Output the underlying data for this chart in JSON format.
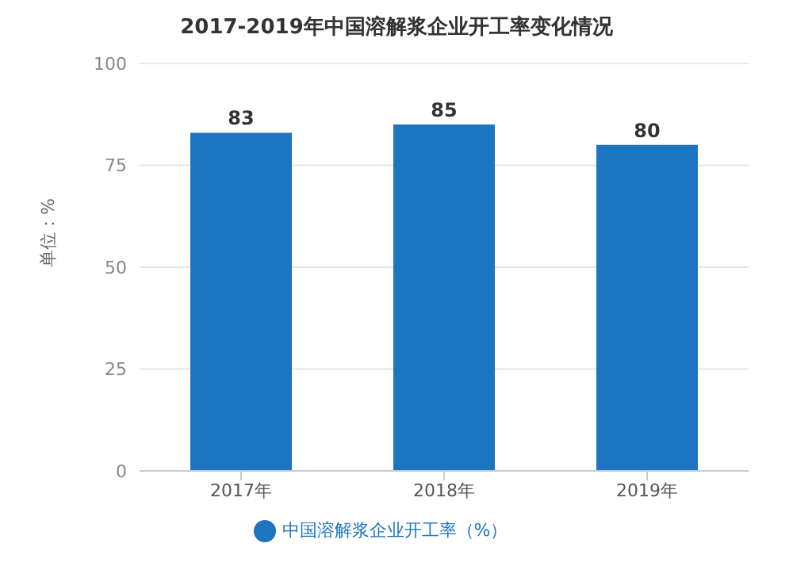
{
  "chart_data": {
    "type": "bar",
    "title": "2017-2019年中国溶解浆企业开工率变化情况",
    "ylabel": "单位：%",
    "categories": [
      "2017年",
      "2018年",
      "2019年"
    ],
    "series": [
      {
        "name": "中国溶解浆企业开工率（%）",
        "color": "#1d74c0",
        "values": [
          83,
          85,
          80
        ]
      }
    ],
    "ylim": [
      0,
      100
    ],
    "yticks": [
      0,
      25,
      50,
      75,
      100
    ],
    "grid": "y",
    "legend": "bottom",
    "data_labels": true
  }
}
